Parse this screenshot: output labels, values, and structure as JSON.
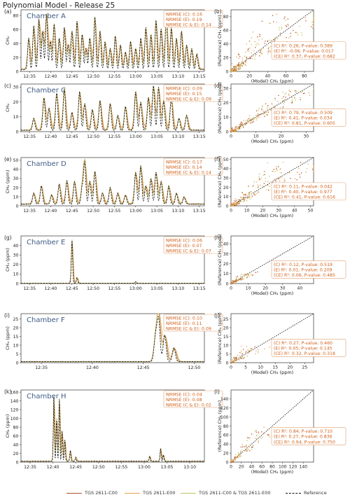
{
  "title": "Polynomial Model - Release 25",
  "colors": {
    "c00": "#b5532a",
    "e00": "#e3a253",
    "ce": "#c3c266",
    "ref": "#111111",
    "chamber_label": "#3f5c86",
    "box_text": "#d0621b",
    "box_border": "#e0a070"
  },
  "legend": {
    "entries": [
      {
        "key": "c00",
        "label": "TGS 2611-C00",
        "dash": false
      },
      {
        "key": "e00",
        "label": "TGS 2611-E00",
        "dash": false
      },
      {
        "key": "ce",
        "label": "TGS 2611-C00 & TGS 2611-E00",
        "dash": false
      },
      {
        "key": "ref",
        "label": "Reference",
        "dash": true
      }
    ]
  },
  "chart_data": [
    {
      "type": "line",
      "panel": "(a)",
      "chamber": "Chamber A",
      "ylabel": "CH₄",
      "xlabel": "",
      "xticks": [
        "12:35",
        "12:40",
        "12:45",
        "12:50",
        "12:55",
        "13:00",
        "13:05",
        "13:10",
        "13:15"
      ],
      "xlim": [
        12.55,
        13.27
      ],
      "ylim": [
        0,
        88
      ],
      "yticks": [
        0,
        20,
        40,
        60,
        80
      ],
      "nrmse": [
        "NRMSE (C): 0.16",
        "NRMSE (E): 0.19",
        "NRMSE (C & E): 0.14"
      ],
      "peaks": [
        [
          12.58,
          45
        ],
        [
          12.6,
          62
        ],
        [
          12.62,
          72
        ],
        [
          12.635,
          55
        ],
        [
          12.65,
          80
        ],
        [
          12.665,
          40
        ],
        [
          12.68,
          65
        ],
        [
          12.7,
          45
        ],
        [
          12.72,
          60
        ],
        [
          12.735,
          35
        ],
        [
          12.75,
          55
        ],
        [
          12.77,
          70
        ],
        [
          12.79,
          50
        ],
        [
          12.805,
          30
        ],
        [
          12.82,
          45
        ],
        [
          12.84,
          75
        ],
        [
          12.86,
          55
        ],
        [
          12.88,
          40
        ],
        [
          12.9,
          30
        ],
        [
          12.92,
          48
        ],
        [
          12.94,
          35
        ],
        [
          12.96,
          25
        ],
        [
          12.98,
          40
        ],
        [
          13.0,
          30
        ],
        [
          13.02,
          45
        ],
        [
          13.04,
          60
        ],
        [
          13.06,
          50
        ],
        [
          13.08,
          70
        ],
        [
          13.1,
          58
        ],
        [
          13.12,
          78
        ],
        [
          13.14,
          60
        ],
        [
          13.16,
          45
        ],
        [
          13.18,
          55
        ],
        [
          13.2,
          35
        ],
        [
          13.22,
          30
        ],
        [
          13.24,
          22
        ]
      ],
      "base": 3,
      "width": 0.006
    },
    {
      "type": "scatter",
      "panel": "(b)",
      "xlabel": "(Model) CH₄ (ppm)",
      "ylabel": "(Reference) CH₄ (ppm)",
      "xlim": [
        0,
        90
      ],
      "ylim": [
        0,
        90
      ],
      "xticks": [
        0,
        20,
        40,
        60,
        80
      ],
      "yticks": [
        0,
        20,
        40,
        60,
        80
      ],
      "stats": [
        "(C) R²: 0.26, P-value: 0.389",
        "(E) R²: -0.06, P-value: 0.017",
        "(CE) R²: 0.37, P-value: 0.682"
      ],
      "max": 85,
      "n": 260,
      "spread": 0.55,
      "seed": 11
    },
    {
      "type": "line",
      "panel": "(c)",
      "chamber": "Chamber C",
      "ylabel": "CH₄",
      "xlabel": "",
      "xticks": [
        "12:35",
        "12:40",
        "12:45",
        "12:50",
        "12:55",
        "13:00",
        "13:05",
        "13:10",
        "13:15"
      ],
      "xlim": [
        12.55,
        13.27
      ],
      "ylim": [
        0,
        32
      ],
      "yticks": [
        0,
        10,
        20,
        30
      ],
      "nrmse": [
        "NRMSE (C): 0.09",
        "NRMSE (E): 0.15",
        "NRMSE (C & E): 0.09"
      ],
      "peaks": [
        [
          12.6,
          8
        ],
        [
          12.64,
          22
        ],
        [
          12.66,
          15
        ],
        [
          12.69,
          25
        ],
        [
          12.72,
          28
        ],
        [
          12.75,
          12
        ],
        [
          12.78,
          26
        ],
        [
          12.8,
          18
        ],
        [
          12.83,
          14
        ],
        [
          12.86,
          20
        ],
        [
          12.9,
          18
        ],
        [
          12.93,
          10
        ],
        [
          12.96,
          16
        ],
        [
          13.0,
          26
        ],
        [
          13.02,
          19
        ],
        [
          13.05,
          22
        ],
        [
          13.07,
          30
        ],
        [
          13.09,
          29
        ],
        [
          13.11,
          20
        ],
        [
          13.14,
          22
        ],
        [
          13.17,
          8
        ],
        [
          13.2,
          10
        ]
      ],
      "base": 1,
      "width": 0.007
    },
    {
      "type": "scatter",
      "panel": "(d)",
      "xlabel": "(Model) CH₄ (ppm)",
      "ylabel": "(Reference) CH₄ (ppm)",
      "xlim": [
        0,
        33
      ],
      "ylim": [
        0,
        33
      ],
      "xticks": [
        0,
        10,
        20,
        30
      ],
      "yticks": [
        0,
        10,
        20,
        30
      ],
      "stats": [
        "(C) R²: 0.79, P-value: 0.509",
        "(E) R²: 0.41, P-value: 0.034",
        "(CE) R²: 0.81, P-value: 0.605"
      ],
      "max": 30,
      "n": 230,
      "spread": 0.25,
      "seed": 23
    },
    {
      "type": "line",
      "panel": "(e)",
      "chamber": "Chamber D",
      "ylabel": "CH₄ (ppm)",
      "xlabel": "",
      "xticks": [
        "12:35",
        "12:40",
        "12:45",
        "12:50",
        "12:55",
        "13:00",
        "13:05",
        "13:10",
        "13:15"
      ],
      "xlim": [
        12.55,
        13.27
      ],
      "ylim": [
        0,
        53
      ],
      "yticks": [
        0,
        10,
        20,
        30,
        40,
        50
      ],
      "nrmse": [
        "NRMSE (C): 0.17",
        "NRMSE (E): 0.14",
        "NRMSE (C & E): 0.14"
      ],
      "peaks": [
        [
          12.6,
          12
        ],
        [
          12.63,
          20
        ],
        [
          12.67,
          10
        ],
        [
          12.7,
          22
        ],
        [
          12.73,
          26
        ],
        [
          12.76,
          25
        ],
        [
          12.79,
          18
        ],
        [
          12.8,
          46
        ],
        [
          12.82,
          25
        ],
        [
          12.84,
          36
        ],
        [
          12.87,
          12
        ],
        [
          12.9,
          18
        ],
        [
          12.93,
          12
        ],
        [
          12.96,
          10
        ],
        [
          13.0,
          35
        ],
        [
          13.02,
          42
        ],
        [
          13.04,
          20
        ],
        [
          13.06,
          28
        ],
        [
          13.08,
          35
        ],
        [
          13.1,
          25
        ],
        [
          13.13,
          20
        ],
        [
          13.16,
          12
        ],
        [
          13.19,
          8
        ]
      ],
      "base": 2,
      "width": 0.007
    },
    {
      "type": "scatter",
      "panel": "(f)",
      "xlabel": "(Model) CH₄ (ppm)",
      "ylabel": "(Reference) CH₄ (ppm)",
      "xlim": [
        0,
        52
      ],
      "ylim": [
        0,
        52
      ],
      "xticks": [
        0,
        10,
        20,
        30,
        40,
        50
      ],
      "yticks": [
        0,
        10,
        20,
        30,
        40,
        50
      ],
      "stats": [
        "(C) R²: 0.11, P-value: 0.042",
        "(E) R²: 0.40, P-value: 0.977",
        "(CE) R²: 0.41, P-value: 0.616"
      ],
      "max": 48,
      "n": 230,
      "spread": 0.5,
      "seed": 37
    },
    {
      "type": "line",
      "panel": "(g)",
      "chamber": "Chamber E",
      "ylabel": "CH₄ (ppm)",
      "xlabel": "",
      "xticks": [
        "12:35",
        "12:40",
        "12:45",
        "12:50",
        "12:55",
        "13:00",
        "13:05",
        "13:10",
        "13:15"
      ],
      "xlim": [
        12.55,
        13.27
      ],
      "ylim": [
        0,
        50
      ],
      "yticks": [
        0,
        10,
        20,
        30,
        40
      ],
      "nrmse": [
        "NRMSE (C): 0.06",
        "NRMSE (E): 0.07",
        "NRMSE (C & E): 0.07"
      ],
      "peaks": [
        [
          12.75,
          46
        ],
        [
          12.77,
          6
        ],
        [
          13.0,
          1.5
        ]
      ],
      "base": 0.4,
      "width": 0.004
    },
    {
      "type": "scatter",
      "panel": "(h)",
      "xlabel": "(Model) CH₄ (ppm)",
      "ylabel": "(Reference) CH₄ (ppm)",
      "xlim": [
        0,
        48
      ],
      "ylim": [
        0,
        48
      ],
      "xticks": [
        0,
        10,
        20,
        30,
        40
      ],
      "yticks": [
        0,
        10,
        20,
        30,
        40
      ],
      "stats": [
        "(C) R²: 0.12, P-value: 0.519",
        "(E) R²: 0.01, P-value: 0.209",
        "(CE) R²: 0.06, P-value: 0.485"
      ],
      "max": 12,
      "n": 90,
      "spread": 0.6,
      "seed": 41
    },
    {
      "type": "line",
      "panel": "(i)",
      "chamber": "Chamber F",
      "ylabel": "CH₄ (ppm)",
      "xlabel": "",
      "xticks": [
        "12:35",
        "12:40",
        "12:45",
        "12:50"
      ],
      "xlim": [
        12.55,
        12.85
      ],
      "ylim": [
        0,
        28
      ],
      "yticks": [
        0,
        5,
        10,
        15,
        20,
        25
      ],
      "nrmse": [
        "NRMSE (C): 0.10",
        "NRMSE (E): 0.11",
        "NRMSE (C & E): 0.09"
      ],
      "peaks": [
        [
          12.77,
          14
        ],
        [
          12.775,
          24
        ],
        [
          12.785,
          15
        ],
        [
          12.8,
          8
        ]
      ],
      "base": 0.6,
      "width": 0.004
    },
    {
      "type": "scatter",
      "panel": "(j)",
      "xlabel": "(Model) CH₄ (ppm)",
      "ylabel": "(Reference) CH₄ (ppm)",
      "xlim": [
        0,
        28
      ],
      "ylim": [
        0,
        28
      ],
      "xticks": [
        0,
        5,
        10,
        15,
        20,
        25
      ],
      "yticks": [
        0,
        5,
        10,
        15,
        20,
        25
      ],
      "stats": [
        "(C) R²: 0.27, P-value: 0.460",
        "(E) R²: 0.05, P-value: 0.145",
        "(CE) R²: 0.32, P-value: 0.318"
      ],
      "max": 10,
      "n": 80,
      "spread": 0.6,
      "seed": 53
    },
    {
      "type": "line",
      "panel": "(k)",
      "chamber": "Chamber H",
      "ylabel": "CH₄ (ppm)",
      "xlabel": "",
      "xticks": [
        "12:35",
        "12:40",
        "12:45",
        "12:50",
        "12:55",
        "13:00",
        "13:05",
        "13:10"
      ],
      "xlim": [
        12.55,
        13.22
      ],
      "ylim": [
        0,
        165
      ],
      "yticks": [
        0,
        20,
        40,
        60,
        80,
        100,
        120,
        140,
        160
      ],
      "nrmse": [
        "NRMSE (C): 0.04",
        "NRMSE (E): 0.08",
        "NRMSE (C & E): 0.02"
      ],
      "peaks": [
        [
          12.67,
          150
        ],
        [
          12.68,
          100
        ],
        [
          12.69,
          145
        ],
        [
          12.7,
          70
        ],
        [
          12.71,
          50
        ],
        [
          12.73,
          25
        ],
        [
          12.75,
          10
        ],
        [
          13.02,
          12
        ],
        [
          13.06,
          30
        ],
        [
          13.07,
          15
        ]
      ],
      "base": 2,
      "width": 0.003
    },
    {
      "type": "scatter",
      "panel": "(l)",
      "xlabel": "(Model) CH₄ (ppm)",
      "ylabel": "(Reference) CH₄ (ppm)",
      "xlim": [
        0,
        160
      ],
      "ylim": [
        0,
        160
      ],
      "xticks": [
        0,
        20,
        40,
        60,
        80,
        100,
        120,
        140
      ],
      "yticks": [
        0,
        20,
        40,
        60,
        80,
        100,
        120,
        140
      ],
      "xtick_text": "0   20   40   60   80   10012014​0",
      "stats": [
        "(C) R²: 0.84, P-value: 0.710",
        "(E) R²: 0.27, P-value: 0.836",
        "(CE) R²: 0.94, P-value: 0.750"
      ],
      "max": 80,
      "n": 120,
      "spread": 0.35,
      "seed": 67
    }
  ]
}
